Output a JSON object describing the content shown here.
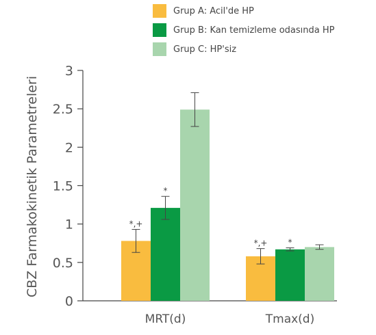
{
  "chart_data": {
    "type": "bar",
    "categories": [
      "MRT(d)",
      "Tmax(d)"
    ],
    "series": [
      {
        "name": "Grup A: Acil'de HP",
        "color": "#f9bc3f",
        "values": [
          0.78,
          0.58
        ],
        "errors": [
          0.15,
          0.1
        ],
        "annotations": [
          "*,+",
          "*,+"
        ]
      },
      {
        "name": "Grup B: Kan temizleme odasında HP",
        "color": "#0a9a44",
        "values": [
          1.21,
          0.67
        ],
        "errors": [
          0.15,
          0.02
        ],
        "annotations": [
          "*",
          "*"
        ]
      },
      {
        "name": "Grup C: HP'siz",
        "color": "#a8d5ad",
        "values": [
          2.49,
          0.7
        ],
        "errors": [
          0.22,
          0.03
        ],
        "annotations": [
          "",
          ""
        ]
      }
    ],
    "ylabel": "CBZ Farmakokinetik Parametreleri",
    "ylim": [
      0,
      3
    ],
    "yticks": [
      "0",
      "0.5",
      "1",
      "1.5",
      "2",
      "2.5",
      "3"
    ],
    "legend_position": "top",
    "grid": false
  }
}
